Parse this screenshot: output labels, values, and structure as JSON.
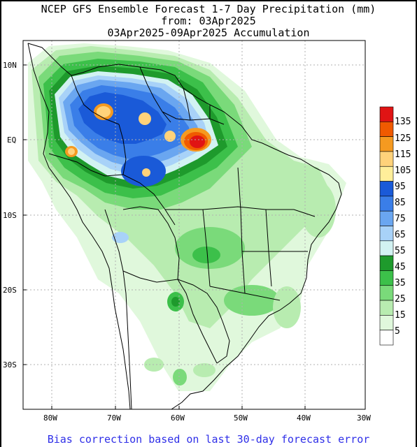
{
  "header": {
    "title_line1": "NCEP GFS Ensemble Forecast 1-7 Day Precipitation (mm)",
    "title_line2": "from: 03Apr2025",
    "title_line3": "03Apr2025-09Apr2025 Accumulation"
  },
  "axes": {
    "lat_labels": [
      "10N",
      "EQ",
      "10S",
      "20S",
      "30S"
    ],
    "lon_labels": [
      "80W",
      "70W",
      "60W",
      "50W",
      "40W",
      "30W"
    ]
  },
  "legend": {
    "labels": [
      "135",
      "125",
      "115",
      "105",
      "95",
      "85",
      "75",
      "65",
      "55",
      "45",
      "35",
      "25",
      "15",
      "5"
    ],
    "colors": [
      "#e01414",
      "#f05a00",
      "#f59a20",
      "#ffd27a",
      "#ffee9a",
      "#1a5ad8",
      "#3a7ee8",
      "#6aa6f0",
      "#a8d2f8",
      "#d2f2f2",
      "#1e9a2c",
      "#3cc04a",
      "#7ada7a",
      "#b8ecb0",
      "#e0f8dc",
      "#ffffff"
    ]
  },
  "footer": {
    "note": "Bias correction based on last 30-day forecast error"
  }
}
